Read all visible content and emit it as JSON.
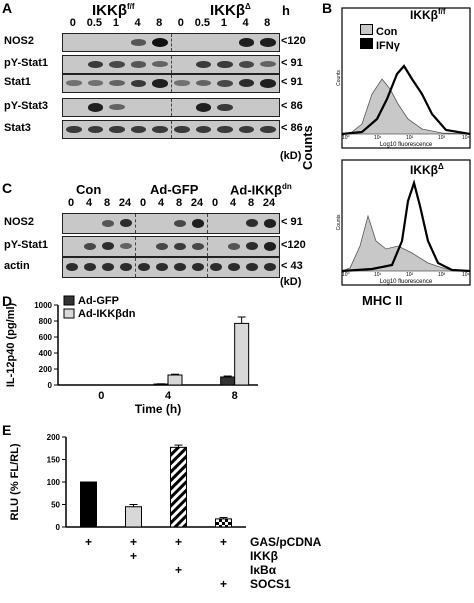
{
  "panel_A": {
    "letter": "A",
    "group1_label": "IKKβ",
    "group1_sup": "f/f",
    "group2_label": "IKKβ",
    "group2_sup": "Δ",
    "time_unit": "h",
    "lanes": [
      "0",
      "0.5",
      "1",
      "4",
      "8",
      "0",
      "0.5",
      "1",
      "4",
      "8"
    ],
    "rows": [
      {
        "name": "NOS2",
        "mw": "<120"
      },
      {
        "name": "pY-Stat1",
        "mw": "< 91"
      },
      {
        "name": "Stat1",
        "mw": "< 91"
      },
      {
        "name": "pY-Stat3",
        "mw": "< 86"
      },
      {
        "name": "Stat3",
        "mw": "< 86"
      }
    ],
    "kd": "(kD)"
  },
  "panel_B": {
    "letter": "B",
    "top_label": "IKKβ",
    "top_sup": "f/f",
    "bottom_label": "IKKβ",
    "bottom_sup": "Δ",
    "legend": [
      "Con",
      "IFNγ"
    ],
    "x_axis": "Log10 fluorescence",
    "y_axis": "Counts",
    "y_tick_top": "Counts",
    "x_label": "MHC II",
    "x_ticks": [
      "10⁰",
      "10¹",
      "10²",
      "10³",
      "10⁴"
    ]
  },
  "panel_C": {
    "letter": "C",
    "groups": [
      "Con",
      "Ad-GFP",
      "Ad-IKKβ"
    ],
    "group3_sup": "dn",
    "lanes": [
      "0",
      "4",
      "8",
      "24",
      "0",
      "4",
      "8",
      "24",
      "0",
      "4",
      "8",
      "24"
    ],
    "rows": [
      {
        "name": "NOS2",
        "mw": "< 91"
      },
      {
        "name": "pY-Stat1",
        "mw": "<120"
      },
      {
        "name": "actin",
        "mw": "< 43"
      }
    ],
    "kd": "(kD)"
  },
  "chart_data": [
    {
      "type": "bar",
      "panel": "D",
      "ylabel": "IL-12p40 (pg/ml)",
      "xlabel": "Time (h)",
      "categories": [
        "0",
        "4",
        "8"
      ],
      "ylim": [
        0,
        1000
      ],
      "yticks": [
        0,
        200,
        400,
        600,
        800,
        1000
      ],
      "series": [
        {
          "name": "Ad-GFP",
          "color": "#333333",
          "values": [
            0,
            12,
            100
          ],
          "errors": [
            0,
            3,
            12
          ]
        },
        {
          "name": "Ad-IKKβdn",
          "color": "#d8d8d8",
          "values": [
            0,
            125,
            770
          ],
          "errors": [
            0,
            10,
            80
          ]
        }
      ]
    },
    {
      "type": "bar",
      "panel": "E",
      "ylabel": "RLU (% FL/RL)",
      "ylim": [
        0,
        200
      ],
      "yticks": [
        0,
        50,
        100,
        150,
        200
      ],
      "values": [
        100,
        45,
        177,
        18
      ],
      "errors": [
        0,
        5,
        5,
        3
      ],
      "fills": [
        "black",
        "lightgray",
        "hatch",
        "checker"
      ],
      "condition_rows": [
        {
          "label": "GAS/pCDNA",
          "marks": [
            "+",
            "+",
            "+",
            "+"
          ]
        },
        {
          "label": "IKKβ",
          "marks": [
            "",
            "+",
            "",
            ""
          ]
        },
        {
          "label": "IκBα",
          "marks": [
            "",
            "",
            "+",
            ""
          ]
        },
        {
          "label": "SOCS1",
          "marks": [
            "",
            "",
            "",
            "+"
          ]
        }
      ]
    }
  ]
}
